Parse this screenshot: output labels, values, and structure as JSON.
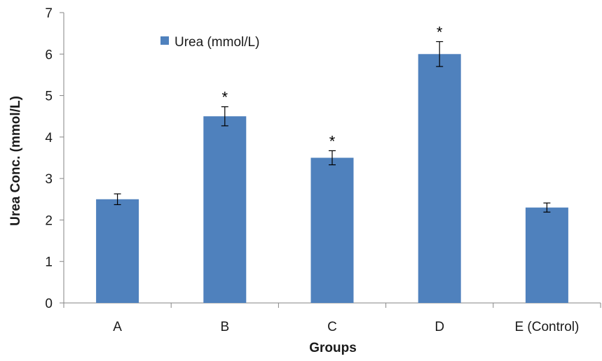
{
  "chart_data": {
    "type": "bar",
    "title": "",
    "xlabel": "Groups",
    "ylabel": "Urea Conc. (mmol/L)",
    "ylim": [
      0,
      7
    ],
    "yticks": [
      "0",
      "1",
      "2",
      "3",
      "4",
      "5",
      "6",
      "7"
    ],
    "categories": [
      "A",
      "B",
      "C",
      "D",
      "E (Control)"
    ],
    "series": [
      {
        "name": "Urea (mmol/L)",
        "values": [
          2.5,
          4.5,
          3.5,
          6.0,
          2.3
        ],
        "errors": [
          0.13,
          0.23,
          0.17,
          0.3,
          0.11
        ],
        "significance": [
          "",
          "*",
          "*",
          "*",
          ""
        ],
        "color": "#4f81bd"
      }
    ],
    "legend": {
      "position": "top-left",
      "labels": [
        "Urea (mmol/L)"
      ]
    },
    "grid": false
  }
}
